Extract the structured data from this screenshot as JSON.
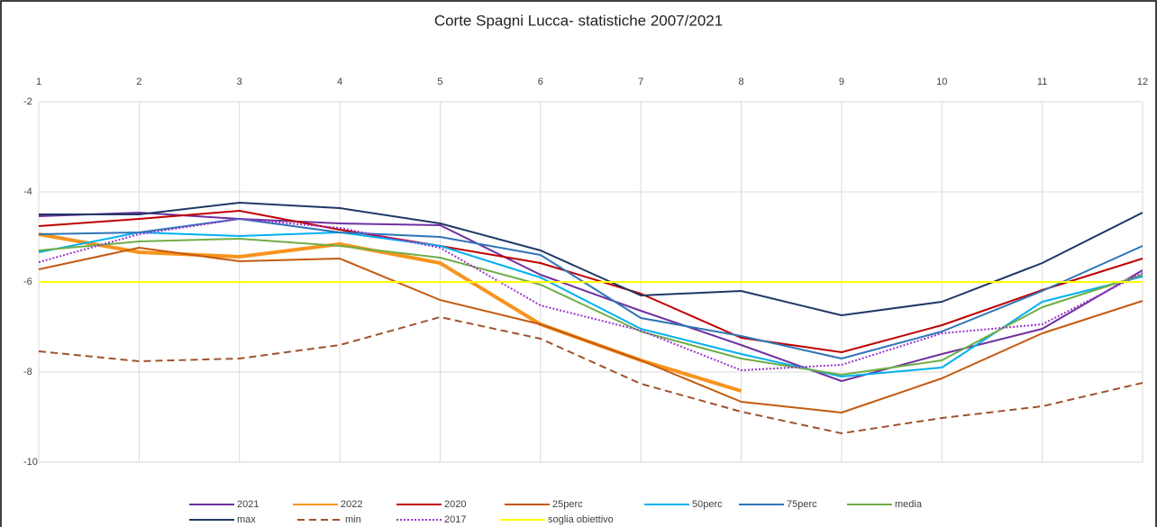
{
  "chart_data": {
    "type": "line",
    "title": "Corte Spagni Lucca- statistiche 2007/2021",
    "categories": [
      "1",
      "2",
      "3",
      "4",
      "5",
      "6",
      "7",
      "8",
      "9",
      "10",
      "11",
      "12"
    ],
    "ylim": [
      -10,
      -2
    ],
    "yticks": [
      -10,
      -8,
      -6,
      -4,
      -2
    ],
    "grid": true,
    "legend": "bottom",
    "series": [
      {
        "name": "2021",
        "color": "#7030a0",
        "values": [
          -4.54,
          -4.46,
          -4.6,
          -4.7,
          -4.74,
          -5.84,
          -6.64,
          -7.4,
          -8.2,
          -7.6,
          -7.04,
          -5.74
        ]
      },
      {
        "name": "2022",
        "color": "#f7941d",
        "style": "bold",
        "values": [
          -4.94,
          -5.34,
          -5.44,
          -5.16,
          -5.58,
          -6.94,
          -7.74,
          -8.42,
          null,
          null,
          null,
          null
        ]
      },
      {
        "name": "2020",
        "color": "#c00000",
        "values": [
          -4.76,
          -4.6,
          -4.42,
          -4.84,
          -5.2,
          -5.58,
          -6.26,
          -7.24,
          -7.56,
          -6.96,
          -6.18,
          -5.48
        ]
      },
      {
        "name": "25perc",
        "color": "#c55a11",
        "values": [
          -5.72,
          -5.24,
          -5.54,
          -5.48,
          -6.4,
          -6.94,
          -7.74,
          -8.66,
          -8.9,
          -8.14,
          -7.14,
          -6.42
        ]
      },
      {
        "name": "50perc",
        "color": "#00b0f0",
        "values": [
          -5.34,
          -4.9,
          -4.98,
          -4.9,
          -5.2,
          -5.9,
          -7.04,
          -7.6,
          -8.1,
          -7.9,
          -6.44,
          -5.88
        ]
      },
      {
        "name": "75perc",
        "color": "#2e75b6",
        "values": [
          -4.94,
          -4.9,
          -4.6,
          -4.9,
          -5.0,
          -5.4,
          -6.8,
          -7.2,
          -7.7,
          -7.1,
          -6.2,
          -5.2
        ]
      },
      {
        "name": "media",
        "color": "#70ad47",
        "values": [
          -5.3,
          -5.1,
          -5.04,
          -5.2,
          -5.46,
          -6.06,
          -7.1,
          -7.7,
          -8.06,
          -7.74,
          -6.56,
          -5.84
        ]
      },
      {
        "name": "max",
        "color": "#203864",
        "values": [
          -4.5,
          -4.5,
          -4.24,
          -4.36,
          -4.7,
          -5.3,
          -6.3,
          -6.2,
          -6.74,
          -6.44,
          -5.58,
          -4.46
        ]
      },
      {
        "name": "min",
        "color": "#a0522d",
        "dash": "dashed",
        "values": [
          -7.54,
          -7.76,
          -7.7,
          -7.4,
          -6.78,
          -7.26,
          -8.26,
          -8.88,
          -9.36,
          -9.02,
          -8.76,
          -8.24
        ]
      },
      {
        "name": "2017",
        "color": "#9933cc",
        "dash": "dotted",
        "values": [
          -5.56,
          -4.94,
          -4.6,
          -4.8,
          -5.24,
          -6.52,
          -7.08,
          -7.96,
          -7.84,
          -7.14,
          -6.94,
          -5.8
        ]
      },
      {
        "name": "soglia obiettivo",
        "color": "#ffff00",
        "values": [
          -6,
          -6,
          -6,
          -6,
          -6,
          -6,
          -6,
          -6,
          -6,
          -6,
          -6,
          -6
        ]
      }
    ]
  }
}
